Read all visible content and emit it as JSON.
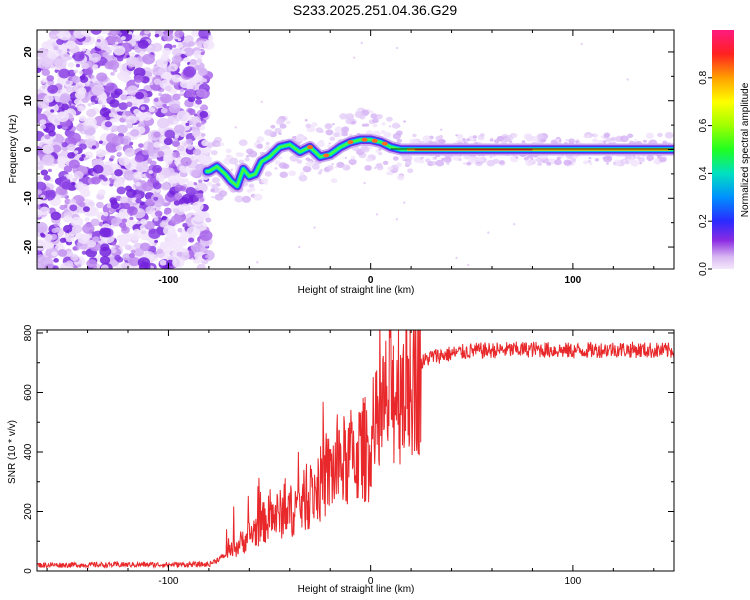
{
  "title": "S233.2025.251.04.36.G29",
  "colors": {
    "snr_line": "#e8282a",
    "axis": "#000000",
    "background": "#ffffff"
  },
  "chart_data": [
    {
      "type": "heatmap",
      "name": "spectrogram",
      "xlabel": "Height of straight line (km)",
      "ylabel": "Frequency (Hz)",
      "xlim": [
        -165,
        150
      ],
      "ylim": [
        -24.5,
        24.5
      ],
      "x_ticks": [
        -100,
        0,
        100
      ],
      "y_ticks": [
        20,
        10,
        0,
        -10,
        -20
      ],
      "ridge": {
        "x": [
          -80,
          -76,
          -72,
          -69,
          -66,
          -63,
          -60,
          -57,
          -54,
          -50,
          -45,
          -40,
          -35,
          -30,
          -25,
          -20,
          -15,
          -10,
          -5,
          0,
          5,
          10,
          15,
          20,
          30,
          40,
          60,
          80,
          100,
          120,
          140,
          148
        ],
        "y": [
          -4.5,
          -3.5,
          -5,
          -6.5,
          -7.5,
          -4,
          -5.5,
          -5,
          -2.5,
          -1.5,
          0.5,
          1,
          -0.5,
          0.5,
          -1.5,
          -1,
          0.5,
          1.5,
          2,
          2,
          1.5,
          0.5,
          0,
          0,
          0,
          0,
          0,
          0,
          0,
          0,
          0,
          0
        ]
      },
      "noise_region_x": [
        -165,
        -82
      ],
      "colorbar": {
        "label": "Normalized spectral amplitude",
        "ticks": [
          "0.0",
          "0.2",
          "0.4",
          "0.6",
          "0.8"
        ],
        "tick_values": [
          0,
          0.2,
          0.4,
          0.6,
          0.8
        ],
        "range": [
          0,
          1
        ]
      }
    },
    {
      "type": "line",
      "name": "snr",
      "xlabel": "Height of straight line (km)",
      "ylabel": "SNR (10 * v/v)",
      "xlim": [
        -165,
        150
      ],
      "ylim": [
        0,
        810
      ],
      "x_ticks": [
        -100,
        0,
        100
      ],
      "y_ticks": [
        800,
        600,
        400,
        200,
        0
      ],
      "trend": {
        "x": [
          -165,
          -80,
          -70,
          -60,
          -50,
          -40,
          -30,
          -20,
          -10,
          0,
          10,
          20,
          30,
          50,
          80,
          100,
          120,
          150
        ],
        "y": [
          20,
          22,
          60,
          120,
          180,
          200,
          250,
          330,
          380,
          420,
          600,
          680,
          720,
          740,
          745,
          740,
          745,
          740
        ]
      }
    }
  ]
}
